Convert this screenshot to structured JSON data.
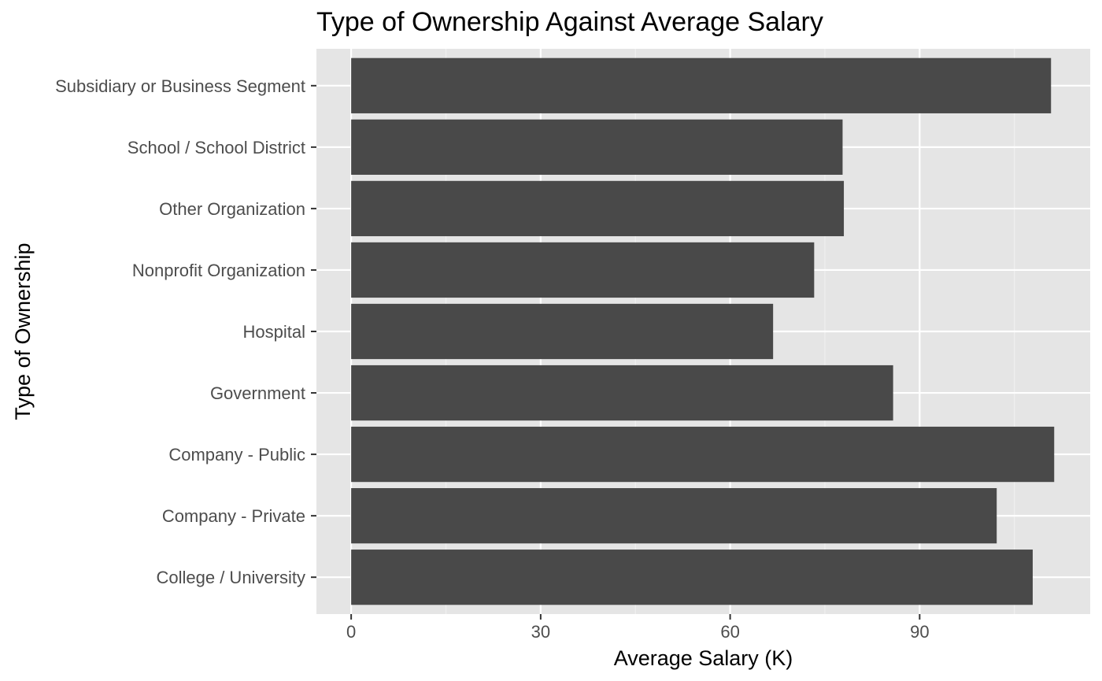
{
  "chart_data": {
    "type": "bar",
    "orientation": "horizontal",
    "title": "Type of Ownership Against Average Salary",
    "xlabel": "Average Salary (K)",
    "ylabel": "Type of Ownership",
    "categories": [
      "College / University",
      "Company - Private",
      "Company - Public",
      "Government",
      "Hospital",
      "Nonprofit Organization",
      "Other Organization",
      "School / School District",
      "Subsidiary or Business Segment"
    ],
    "values": [
      107.9,
      102.2,
      111.3,
      85.8,
      66.8,
      73.3,
      78.0,
      77.8,
      110.8
    ],
    "xlim": [
      -5.5,
      117.0
    ],
    "xticks": [
      0,
      30,
      60,
      90
    ],
    "xtick_labels": [
      "0",
      "30",
      "60",
      "90"
    ],
    "grid": true,
    "colors": {
      "bar": "#494949",
      "panel_background": "#e5e5e5",
      "grid_major": "#ffffff",
      "grid_minor": "#f0f0f0",
      "tick_text": "#4d4d4d",
      "tick_mark": "#333333"
    }
  }
}
